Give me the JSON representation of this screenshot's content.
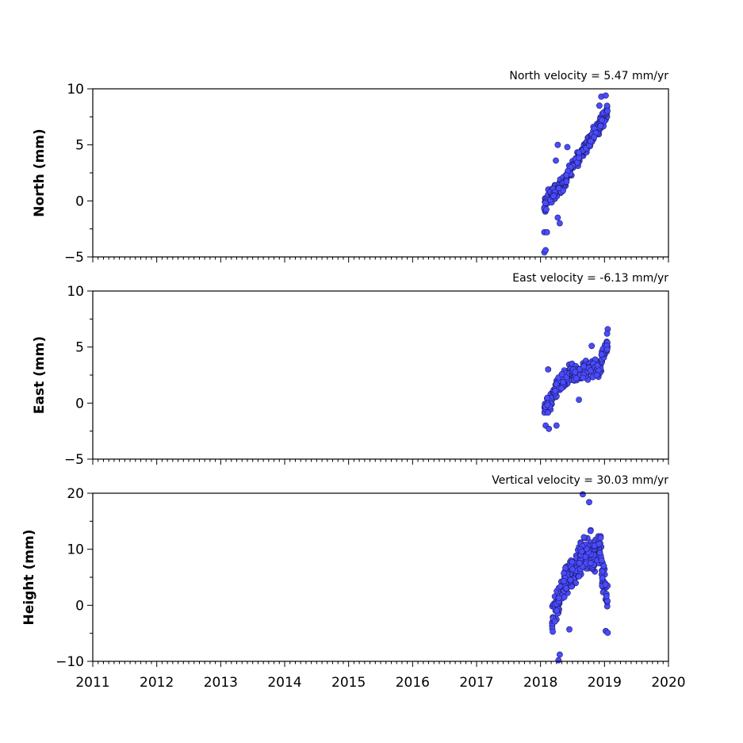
{
  "chart_data": [
    {
      "type": "scatter",
      "title": "North velocity = 5.47 mm/yr",
      "ylabel": "North (mm)",
      "xlim": [
        2011,
        2020
      ],
      "ylim": [
        -5,
        10
      ],
      "yticks": [
        -5,
        0,
        5,
        10
      ],
      "ytick_labels": [
        "−5",
        "0",
        "5",
        "10"
      ],
      "marker_color": "#4b4bff",
      "segments": [
        {
          "x_start": 2018.05,
          "x_end": 2018.15,
          "y_start": -0.8,
          "y_end": 0.6,
          "spread": 2.2
        },
        {
          "x_start": 2018.15,
          "x_end": 2018.4,
          "y_start": 0.4,
          "y_end": 1.8,
          "spread": 1.8
        },
        {
          "x_start": 2018.4,
          "x_end": 2018.75,
          "y_start": 2.2,
          "y_end": 5.2,
          "spread": 1.6
        },
        {
          "x_start": 2018.75,
          "x_end": 2019.05,
          "y_start": 5.2,
          "y_end": 8.0,
          "spread": 1.8
        }
      ],
      "outliers": [
        [
          2018.06,
          -4.6
        ],
        [
          2018.08,
          -4.4
        ],
        [
          2018.06,
          -2.8
        ],
        [
          2018.1,
          -2.8
        ],
        [
          2018.27,
          -1.5
        ],
        [
          2018.3,
          -2.0
        ],
        [
          2018.27,
          5.0
        ],
        [
          2018.24,
          3.6
        ],
        [
          2018.42,
          4.8
        ],
        [
          2018.92,
          8.5
        ],
        [
          2018.95,
          9.3
        ],
        [
          2019.02,
          9.4
        ]
      ]
    },
    {
      "type": "scatter",
      "title": "East velocity = -6.13 mm/yr",
      "ylabel": "East (mm)",
      "xlim": [
        2011,
        2020
      ],
      "ylim": [
        -5,
        10
      ],
      "yticks": [
        -5,
        0,
        5,
        10
      ],
      "ytick_labels": [
        "−5",
        "0",
        "5",
        "10"
      ],
      "marker_color": "#4b4bff",
      "segments": [
        {
          "x_start": 2018.05,
          "x_end": 2018.2,
          "y_start": -0.6,
          "y_end": 0.5,
          "spread": 2.0
        },
        {
          "x_start": 2018.2,
          "x_end": 2018.5,
          "y_start": 1.0,
          "y_end": 3.0,
          "spread": 2.0
        },
        {
          "x_start": 2018.5,
          "x_end": 2018.95,
          "y_start": 2.5,
          "y_end": 3.2,
          "spread": 2.2
        },
        {
          "x_start": 2018.95,
          "x_end": 2019.05,
          "y_start": 3.8,
          "y_end": 5.2,
          "spread": 1.8
        }
      ],
      "outliers": [
        [
          2018.08,
          -2.0
        ],
        [
          2018.13,
          -2.3
        ],
        [
          2018.25,
          -2.0
        ],
        [
          2018.12,
          3.0
        ],
        [
          2018.6,
          0.3
        ],
        [
          2018.8,
          5.1
        ],
        [
          2019.05,
          6.6
        ],
        [
          2019.04,
          6.2
        ]
      ]
    },
    {
      "type": "scatter",
      "title": "Vertical velocity = 30.03 mm/yr",
      "ylabel": "Height (mm)",
      "xlabel": "",
      "xlim": [
        2011,
        2020
      ],
      "ylim": [
        -10,
        20
      ],
      "yticks": [
        -10,
        0,
        10,
        20
      ],
      "ytick_labels": [
        "−10",
        "0",
        "10",
        "20"
      ],
      "xticks": [
        2011,
        2012,
        2013,
        2014,
        2015,
        2016,
        2017,
        2018,
        2019,
        2020
      ],
      "xtick_labels": [
        "2011",
        "2012",
        "2013",
        "2014",
        "2015",
        "2016",
        "2017",
        "2018",
        "2019",
        "2020"
      ],
      "marker_color": "#4b4bff",
      "segments": [
        {
          "x_start": 2018.18,
          "x_end": 2018.35,
          "y_start": -3.0,
          "y_end": 3.0,
          "spread": 9.0
        },
        {
          "x_start": 2018.35,
          "x_end": 2018.6,
          "y_start": 4.0,
          "y_end": 7.0,
          "spread": 9.0
        },
        {
          "x_start": 2018.6,
          "x_end": 2018.95,
          "y_start": 8.0,
          "y_end": 10.0,
          "spread": 10.0
        },
        {
          "x_start": 2018.95,
          "x_end": 2019.05,
          "y_start": 6.0,
          "y_end": 2.0,
          "spread": 10.0
        }
      ],
      "outliers": [
        [
          2018.28,
          -9.8
        ],
        [
          2018.3,
          -8.8
        ],
        [
          2018.45,
          -4.3
        ],
        [
          2018.66,
          19.8
        ],
        [
          2018.76,
          18.4
        ],
        [
          2019.02,
          -4.6
        ],
        [
          2019.05,
          -4.9
        ]
      ]
    }
  ]
}
